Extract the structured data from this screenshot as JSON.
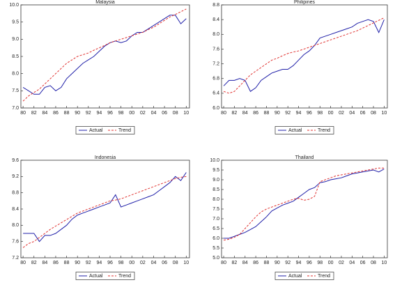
{
  "chart_data": [
    {
      "type": "line",
      "title": "Malaysia",
      "x": [
        1980,
        1981,
        1982,
        1983,
        1984,
        1985,
        1986,
        1987,
        1988,
        1989,
        1990,
        1991,
        1992,
        1993,
        1994,
        1995,
        1996,
        1997,
        1998,
        1999,
        2000,
        2001,
        2002,
        2003,
        2004,
        2005,
        2006,
        2007,
        2008,
        2009,
        2010
      ],
      "series": [
        {
          "name": "Actual",
          "color": "#1f1fa8",
          "linestyle": "solid",
          "values": [
            7.6,
            7.5,
            7.4,
            7.4,
            7.6,
            7.65,
            7.5,
            7.6,
            7.85,
            8.0,
            8.15,
            8.3,
            8.4,
            8.5,
            8.65,
            8.8,
            8.9,
            8.95,
            8.9,
            8.95,
            9.1,
            9.2,
            9.2,
            9.3,
            9.4,
            9.5,
            9.6,
            9.7,
            9.7,
            9.45,
            9.6
          ]
        },
        {
          "name": "Trend",
          "color": "#e0302e",
          "linestyle": "dashed",
          "values": [
            7.2,
            7.35,
            7.45,
            7.55,
            7.7,
            7.85,
            8.0,
            8.15,
            8.3,
            8.4,
            8.5,
            8.55,
            8.6,
            8.68,
            8.75,
            8.82,
            8.9,
            8.95,
            9.0,
            9.05,
            9.1,
            9.15,
            9.2,
            9.28,
            9.35,
            9.45,
            9.55,
            9.65,
            9.72,
            9.8,
            9.88
          ]
        }
      ],
      "xlim": [
        1979.6,
        2010.6
      ],
      "xticks": [
        {
          "value": 1980,
          "label": "80"
        },
        {
          "value": 1982,
          "label": "82"
        },
        {
          "value": 1984,
          "label": "84"
        },
        {
          "value": 1986,
          "label": "86"
        },
        {
          "value": 1988,
          "label": "88"
        },
        {
          "value": 1990,
          "label": "90"
        },
        {
          "value": 1992,
          "label": "92"
        },
        {
          "value": 1994,
          "label": "94"
        },
        {
          "value": 1996,
          "label": "96"
        },
        {
          "value": 1998,
          "label": "98"
        },
        {
          "value": 2000,
          "label": "00"
        },
        {
          "value": 2002,
          "label": "02"
        },
        {
          "value": 2004,
          "label": "04"
        },
        {
          "value": 2006,
          "label": "06"
        },
        {
          "value": 2008,
          "label": "08"
        },
        {
          "value": 2010,
          "label": "10"
        }
      ],
      "ylim": [
        7,
        10
      ],
      "yticks": [
        {
          "value": 7,
          "label": "7.0"
        },
        7.5,
        {
          "value": 8,
          "label": "8.0"
        },
        8.5,
        {
          "value": 9,
          "label": "9.0"
        },
        9.5,
        {
          "value": 10,
          "label": "10.0"
        }
      ]
    },
    {
      "type": "line",
      "title": "Philipines",
      "x": [
        1980,
        1981,
        1982,
        1983,
        1984,
        1985,
        1986,
        1987,
        1988,
        1989,
        1990,
        1991,
        1992,
        1993,
        1994,
        1995,
        1996,
        1997,
        1998,
        1999,
        2000,
        2001,
        2002,
        2003,
        2004,
        2005,
        2006,
        2007,
        2008,
        2009,
        2010
      ],
      "series": [
        {
          "name": "Actual",
          "color": "#1f1fa8",
          "linestyle": "solid",
          "values": [
            6.6,
            6.75,
            6.75,
            6.8,
            6.75,
            6.45,
            6.55,
            6.75,
            6.85,
            6.95,
            7.0,
            7.05,
            7.05,
            7.15,
            7.3,
            7.45,
            7.55,
            7.7,
            7.9,
            7.95,
            8.0,
            8.05,
            8.1,
            8.15,
            8.2,
            8.3,
            8.35,
            8.4,
            8.35,
            8.05,
            8.4
          ]
        },
        {
          "name": "Trend",
          "color": "#e0302e",
          "linestyle": "dashed",
          "values": [
            6.45,
            6.4,
            6.45,
            6.6,
            6.75,
            6.9,
            7.0,
            7.1,
            7.2,
            7.3,
            7.35,
            7.42,
            7.48,
            7.52,
            7.55,
            7.6,
            7.65,
            7.7,
            7.75,
            7.8,
            7.85,
            7.9,
            7.95,
            8.0,
            8.05,
            8.1,
            8.17,
            8.24,
            8.31,
            8.38,
            8.45
          ]
        }
      ],
      "xlim": [
        1979.6,
        2010.6
      ],
      "xticks": [
        {
          "value": 1980,
          "label": "80"
        },
        {
          "value": 1982,
          "label": "82"
        },
        {
          "value": 1984,
          "label": "84"
        },
        {
          "value": 1986,
          "label": "86"
        },
        {
          "value": 1988,
          "label": "88"
        },
        {
          "value": 1990,
          "label": "90"
        },
        {
          "value": 1992,
          "label": "92"
        },
        {
          "value": 1994,
          "label": "94"
        },
        {
          "value": 1996,
          "label": "96"
        },
        {
          "value": 1998,
          "label": "98"
        },
        {
          "value": 2000,
          "label": "00"
        },
        {
          "value": 2002,
          "label": "02"
        },
        {
          "value": 2004,
          "label": "04"
        },
        {
          "value": 2006,
          "label": "06"
        },
        {
          "value": 2008,
          "label": "08"
        },
        {
          "value": 2010,
          "label": "10"
        }
      ],
      "ylim": [
        6.0,
        8.8
      ],
      "yticks": [
        {
          "value": 6,
          "label": "6.0"
        },
        6.4,
        6.8,
        7.2,
        7.6,
        {
          "value": 8,
          "label": "8.0"
        },
        8.4,
        8.8
      ]
    },
    {
      "type": "line",
      "title": "Indonesia",
      "x": [
        1980,
        1981,
        1982,
        1983,
        1984,
        1985,
        1986,
        1987,
        1988,
        1989,
        1990,
        1991,
        1992,
        1993,
        1994,
        1995,
        1996,
        1997,
        1998,
        1999,
        2000,
        2001,
        2002,
        2003,
        2004,
        2005,
        2006,
        2007,
        2008,
        2009,
        2010
      ],
      "series": [
        {
          "name": "Actual",
          "color": "#1f1fa8",
          "linestyle": "solid",
          "values": [
            7.8,
            7.8,
            7.8,
            7.6,
            7.75,
            7.75,
            7.8,
            7.9,
            8.0,
            8.15,
            8.25,
            8.3,
            8.35,
            8.4,
            8.45,
            8.5,
            8.55,
            8.75,
            8.45,
            8.5,
            8.55,
            8.6,
            8.65,
            8.7,
            8.75,
            8.85,
            8.95,
            9.05,
            9.2,
            9.1,
            9.3
          ]
        },
        {
          "name": "Trend",
          "color": "#e0302e",
          "linestyle": "dashed",
          "values": [
            7.45,
            7.55,
            7.6,
            7.7,
            7.8,
            7.9,
            7.98,
            8.06,
            8.14,
            8.22,
            8.3,
            8.35,
            8.4,
            8.45,
            8.5,
            8.55,
            8.6,
            8.62,
            8.65,
            8.7,
            8.75,
            8.8,
            8.85,
            8.9,
            8.95,
            9.0,
            9.05,
            9.1,
            9.15,
            9.18,
            9.2
          ]
        }
      ],
      "xlim": [
        1979.6,
        2010.6
      ],
      "xticks": [
        {
          "value": 1980,
          "label": "80"
        },
        {
          "value": 1982,
          "label": "82"
        },
        {
          "value": 1984,
          "label": "84"
        },
        {
          "value": 1986,
          "label": "86"
        },
        {
          "value": 1988,
          "label": "88"
        },
        {
          "value": 1990,
          "label": "90"
        },
        {
          "value": 1992,
          "label": "92"
        },
        {
          "value": 1994,
          "label": "94"
        },
        {
          "value": 1996,
          "label": "96"
        },
        {
          "value": 1998,
          "label": "98"
        },
        {
          "value": 2000,
          "label": "00"
        },
        {
          "value": 2002,
          "label": "02"
        },
        {
          "value": 2004,
          "label": "04"
        },
        {
          "value": 2006,
          "label": "06"
        },
        {
          "value": 2008,
          "label": "08"
        },
        {
          "value": 2010,
          "label": "10"
        }
      ],
      "ylim": [
        7.2,
        9.6
      ],
      "yticks": [
        7.2,
        7.6,
        {
          "value": 8,
          "label": "8.0"
        },
        8.4,
        8.8,
        9.2,
        9.6
      ]
    },
    {
      "type": "line",
      "title": "Thailand",
      "x": [
        1980,
        1981,
        1982,
        1983,
        1984,
        1985,
        1986,
        1987,
        1988,
        1989,
        1990,
        1991,
        1992,
        1993,
        1994,
        1995,
        1996,
        1997,
        1998,
        1999,
        2000,
        2001,
        2002,
        2003,
        2004,
        2005,
        2006,
        2007,
        2008,
        2009,
        2010
      ],
      "series": [
        {
          "name": "Actual",
          "color": "#1f1fa8",
          "linestyle": "solid",
          "values": [
            6.0,
            6.0,
            6.1,
            6.2,
            6.3,
            6.45,
            6.6,
            6.85,
            7.1,
            7.4,
            7.55,
            7.7,
            7.8,
            7.9,
            8.1,
            8.3,
            8.5,
            8.6,
            8.85,
            8.9,
            9.0,
            9.05,
            9.1,
            9.2,
            9.3,
            9.35,
            9.4,
            9.45,
            9.5,
            9.4,
            9.55
          ]
        },
        {
          "name": "Trend",
          "color": "#e0302e",
          "linestyle": "dashed",
          "values": [
            5.9,
            5.95,
            6.05,
            6.2,
            6.5,
            6.8,
            7.1,
            7.35,
            7.5,
            7.6,
            7.7,
            7.8,
            7.9,
            8.0,
            8.05,
            7.95,
            8.0,
            8.15,
            8.9,
            9.0,
            9.1,
            9.2,
            9.25,
            9.3,
            9.35,
            9.4,
            9.45,
            9.5,
            9.55,
            9.6,
            9.6
          ]
        }
      ],
      "xlim": [
        1979.6,
        2010.6
      ],
      "xticks": [
        {
          "value": 1980,
          "label": "80"
        },
        {
          "value": 1982,
          "label": "82"
        },
        {
          "value": 1984,
          "label": "84"
        },
        {
          "value": 1986,
          "label": "86"
        },
        {
          "value": 1988,
          "label": "88"
        },
        {
          "value": 1990,
          "label": "90"
        },
        {
          "value": 1992,
          "label": "92"
        },
        {
          "value": 1994,
          "label": "94"
        },
        {
          "value": 1996,
          "label": "96"
        },
        {
          "value": 1998,
          "label": "98"
        },
        {
          "value": 2000,
          "label": "00"
        },
        {
          "value": 2002,
          "label": "02"
        },
        {
          "value": 2004,
          "label": "04"
        },
        {
          "value": 2006,
          "label": "06"
        },
        {
          "value": 2008,
          "label": "08"
        },
        {
          "value": 2010,
          "label": "10"
        }
      ],
      "ylim": [
        5,
        10
      ],
      "yticks": [
        {
          "value": 5,
          "label": "5.0"
        },
        5.5,
        {
          "value": 6,
          "label": "6.0"
        },
        6.5,
        {
          "value": 7,
          "label": "7.0"
        },
        7.5,
        {
          "value": 8,
          "label": "8.0"
        },
        8.5,
        {
          "value": 9,
          "label": "9.0"
        },
        9.5,
        {
          "value": 10,
          "label": "10.0"
        }
      ]
    }
  ]
}
